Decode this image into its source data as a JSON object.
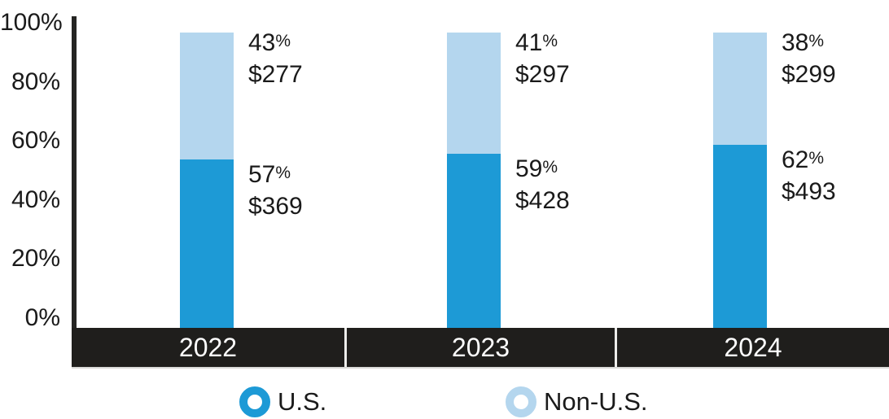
{
  "chart_data": {
    "type": "bar",
    "variant": "stacked-percent-column",
    "title": "",
    "categories": [
      "2022",
      "2023",
      "2024"
    ],
    "series": [
      {
        "name": "U.S.",
        "color": "#1d9ad6",
        "pct": [
          57,
          59,
          62
        ],
        "amounts": [
          "$369",
          "$428",
          "$493"
        ]
      },
      {
        "name": "Non-U.S.",
        "color": "#b4d6ee",
        "pct": [
          43,
          41,
          38
        ],
        "amounts": [
          "$277",
          "$297",
          "$299"
        ]
      }
    ],
    "percent_suffix": "%",
    "y_axis": {
      "tick_labels": [
        "100%",
        "80%",
        "60%",
        "40%",
        "20%",
        "0%"
      ],
      "tick_values": [
        100,
        80,
        60,
        40,
        20,
        0
      ],
      "range": [
        0,
        100
      ],
      "grid": false
    },
    "legend_position": "bottom"
  },
  "legend": {
    "items": [
      {
        "label": "U.S.",
        "color": "#1d9ad6"
      },
      {
        "label": "Non-U.S.",
        "color": "#b4d6ee"
      }
    ]
  },
  "colors": {
    "us_segment": "#1d9ad6",
    "non_us_segment": "#b4d6ee",
    "axis_band": "#1f1e1c",
    "axis_line": "#252523",
    "band_divider": "#ededeb",
    "band_year_text": "#ffffff",
    "label_text": "#1a1a1a",
    "background": "#ffffff"
  }
}
